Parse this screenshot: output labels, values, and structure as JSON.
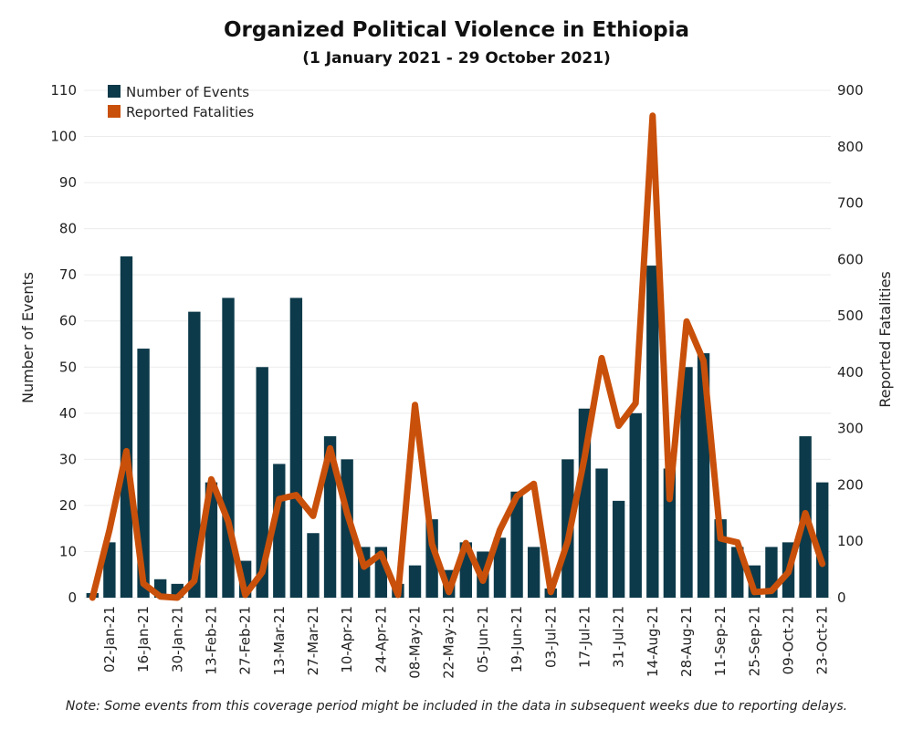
{
  "chart_data": {
    "type": "bar",
    "title": "Organized Political Violence in Ethiopia",
    "subtitle": "(1 January 2021 - 29 October 2021)",
    "ylabel": "Number of Events",
    "y2label": "Reported Fatalities",
    "ylim": [
      0,
      110
    ],
    "y2lim": [
      0,
      900
    ],
    "yticks": [
      0,
      10,
      20,
      30,
      40,
      50,
      60,
      70,
      80,
      90,
      100,
      110
    ],
    "y2ticks": [
      0,
      100,
      200,
      300,
      400,
      500,
      600,
      700,
      800,
      900
    ],
    "grid": true,
    "legend_position": "top-left",
    "note": "Note: Some events from this coverage period might be included in the data in subsequent weeks due to reporting delays.",
    "x": [
      "26-Dec-20",
      "02-Jan-21",
      "09-Jan-21",
      "16-Jan-21",
      "23-Jan-21",
      "30-Jan-21",
      "06-Feb-21",
      "13-Feb-21",
      "20-Feb-21",
      "27-Feb-21",
      "06-Mar-21",
      "13-Mar-21",
      "20-Mar-21",
      "27-Mar-21",
      "03-Apr-21",
      "10-Apr-21",
      "17-Apr-21",
      "24-Apr-21",
      "01-May-21",
      "08-May-21",
      "15-May-21",
      "22-May-21",
      "29-May-21",
      "05-Jun-21",
      "12-Jun-21",
      "19-Jun-21",
      "26-Jun-21",
      "03-Jul-21",
      "10-Jul-21",
      "17-Jul-21",
      "24-Jul-21",
      "31-Jul-21",
      "07-Aug-21",
      "14-Aug-21",
      "21-Aug-21",
      "28-Aug-21",
      "04-Sep-21",
      "11-Sep-21",
      "18-Sep-21",
      "25-Sep-21",
      "02-Oct-21",
      "09-Oct-21",
      "16-Oct-21",
      "23-Oct-21"
    ],
    "tick_labels": [
      "02-Jan-21",
      "16-Jan-21",
      "30-Jan-21",
      "13-Feb-21",
      "27-Feb-21",
      "13-Mar-21",
      "27-Mar-21",
      "10-Apr-21",
      "24-Apr-21",
      "08-May-21",
      "22-May-21",
      "05-Jun-21",
      "19-Jun-21",
      "03-Jul-21",
      "17-Jul-21",
      "31-Jul-21",
      "14-Aug-21",
      "28-Aug-21",
      "11-Sep-21",
      "25-Sep-21",
      "09-Oct-21",
      "23-Oct-21"
    ],
    "series": [
      {
        "name": "Number of Events",
        "type": "bar",
        "axis": "left",
        "color": "#0d3a4a",
        "values": [
          1,
          12,
          74,
          54,
          4,
          3,
          62,
          25,
          65,
          8,
          50,
          29,
          65,
          14,
          35,
          30,
          11,
          11,
          3,
          7,
          17,
          6,
          12,
          10,
          13,
          23,
          11,
          2,
          30,
          41,
          28,
          21,
          40,
          72,
          28,
          50,
          53,
          17,
          11,
          7,
          11,
          12,
          35,
          25
        ]
      },
      {
        "name": "Reported Fatalities",
        "type": "line",
        "axis": "right",
        "color": "#c9500a",
        "values": [
          0,
          120,
          260,
          25,
          2,
          0,
          30,
          210,
          135,
          5,
          45,
          175,
          182,
          145,
          265,
          150,
          55,
          78,
          5,
          342,
          95,
          10,
          97,
          30,
          120,
          180,
          202,
          10,
          100,
          250,
          425,
          305,
          345,
          855,
          175,
          490,
          420,
          105,
          98,
          10,
          12,
          45,
          150,
          60
        ]
      }
    ]
  }
}
